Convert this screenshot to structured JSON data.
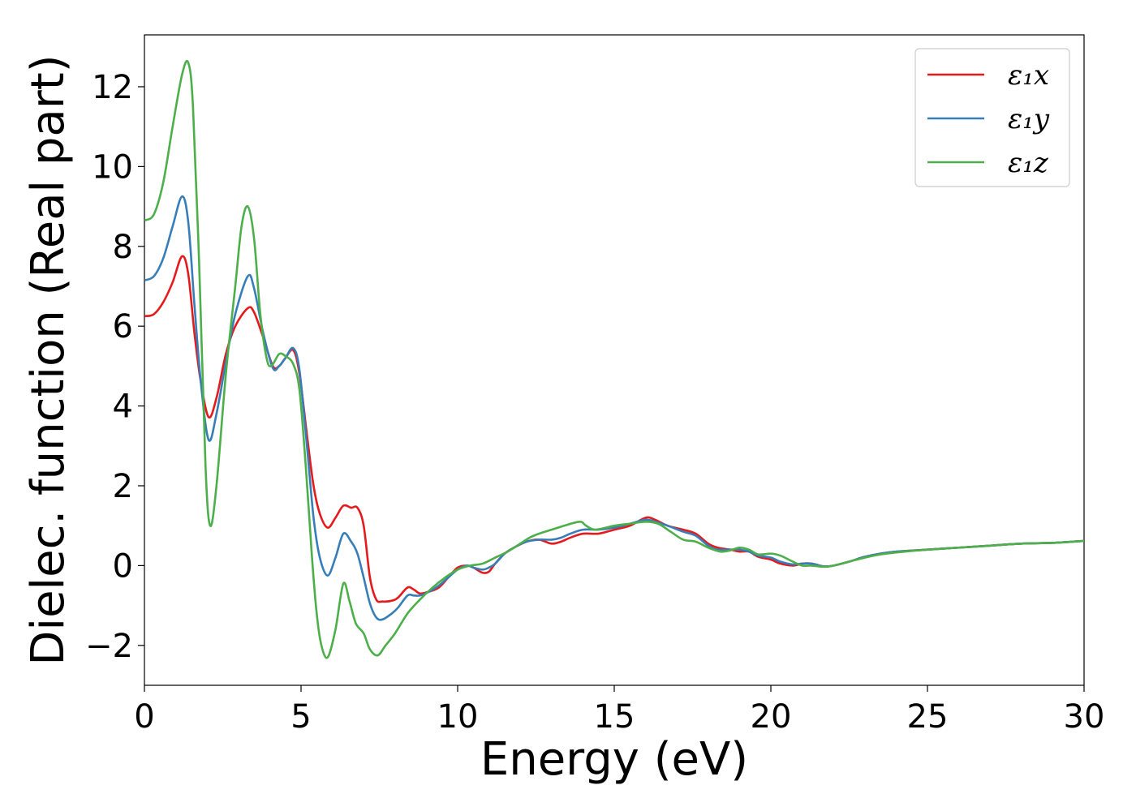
{
  "chart_data": {
    "type": "line",
    "xlabel": "Energy (eV)",
    "ylabel": "Dielec. function (Real part)",
    "xlim": [
      0,
      30
    ],
    "ylim": [
      -3,
      13.3
    ],
    "xticks": [
      0,
      5,
      10,
      15,
      20,
      25,
      30
    ],
    "yticks": [
      -2,
      0,
      2,
      4,
      6,
      8,
      10,
      12
    ],
    "ytick_labels": [
      "−2",
      "0",
      "2",
      "4",
      "6",
      "8",
      "10",
      "12"
    ],
    "grid": false,
    "legend_position": "top-right",
    "series": [
      {
        "name": "ε₁x",
        "color": "#e41a1c",
        "points": [
          [
            0,
            6.25
          ],
          [
            0.3,
            6.3
          ],
          [
            0.6,
            6.6
          ],
          [
            0.9,
            7.1
          ],
          [
            1.2,
            7.75
          ],
          [
            1.4,
            7.3
          ],
          [
            1.6,
            5.8
          ],
          [
            1.8,
            4.6
          ],
          [
            2.05,
            3.72
          ],
          [
            2.3,
            4.2
          ],
          [
            2.6,
            5.3
          ],
          [
            2.9,
            6.0
          ],
          [
            3.3,
            6.45
          ],
          [
            3.5,
            6.35
          ],
          [
            3.8,
            5.7
          ],
          [
            4.1,
            5.0
          ],
          [
            4.3,
            5.0
          ],
          [
            4.5,
            5.2
          ],
          [
            4.75,
            5.4
          ],
          [
            4.95,
            4.8
          ],
          [
            5.2,
            3.2
          ],
          [
            5.4,
            2.0
          ],
          [
            5.6,
            1.3
          ],
          [
            5.85,
            0.95
          ],
          [
            6.1,
            1.2
          ],
          [
            6.35,
            1.5
          ],
          [
            6.6,
            1.45
          ],
          [
            6.8,
            1.45
          ],
          [
            7.0,
            1.0
          ],
          [
            7.2,
            -0.3
          ],
          [
            7.4,
            -0.85
          ],
          [
            7.6,
            -0.9
          ],
          [
            7.9,
            -0.88
          ],
          [
            8.1,
            -0.8
          ],
          [
            8.4,
            -0.55
          ],
          [
            8.6,
            -0.6
          ],
          [
            8.8,
            -0.7
          ],
          [
            9.1,
            -0.65
          ],
          [
            9.4,
            -0.55
          ],
          [
            9.7,
            -0.3
          ],
          [
            10.0,
            -0.05
          ],
          [
            10.3,
            0.0
          ],
          [
            10.5,
            -0.05
          ],
          [
            10.8,
            -0.18
          ],
          [
            11.0,
            -0.15
          ],
          [
            11.2,
            0.05
          ],
          [
            11.5,
            0.3
          ],
          [
            11.8,
            0.45
          ],
          [
            12.2,
            0.6
          ],
          [
            12.6,
            0.65
          ],
          [
            13.0,
            0.55
          ],
          [
            13.3,
            0.6
          ],
          [
            13.6,
            0.7
          ],
          [
            14.0,
            0.8
          ],
          [
            14.5,
            0.8
          ],
          [
            15.0,
            0.9
          ],
          [
            15.5,
            1.0
          ],
          [
            16.0,
            1.2
          ],
          [
            16.3,
            1.15
          ],
          [
            16.7,
            1.0
          ],
          [
            17.2,
            0.9
          ],
          [
            17.6,
            0.8
          ],
          [
            18.0,
            0.55
          ],
          [
            18.3,
            0.45
          ],
          [
            18.7,
            0.4
          ],
          [
            19.0,
            0.35
          ],
          [
            19.3,
            0.35
          ],
          [
            19.6,
            0.22
          ],
          [
            20.0,
            0.15
          ],
          [
            20.3,
            0.05
          ],
          [
            20.7,
            0.0
          ],
          [
            21.0,
            0.05
          ],
          [
            21.3,
            0.05
          ],
          [
            21.7,
            -0.02
          ],
          [
            22.0,
            0.0
          ],
          [
            22.5,
            0.1
          ],
          [
            23.0,
            0.22
          ],
          [
            23.5,
            0.3
          ],
          [
            24.0,
            0.35
          ],
          [
            25.0,
            0.4
          ],
          [
            26.0,
            0.45
          ],
          [
            27.0,
            0.5
          ],
          [
            28.0,
            0.55
          ],
          [
            29.0,
            0.57
          ],
          [
            30.0,
            0.62
          ]
        ]
      },
      {
        "name": "ε₁y",
        "color": "#377eb8",
        "points": [
          [
            0,
            7.15
          ],
          [
            0.3,
            7.25
          ],
          [
            0.6,
            7.7
          ],
          [
            0.9,
            8.5
          ],
          [
            1.2,
            9.25
          ],
          [
            1.4,
            8.6
          ],
          [
            1.6,
            6.5
          ],
          [
            1.8,
            4.6
          ],
          [
            2.05,
            3.15
          ],
          [
            2.3,
            3.8
          ],
          [
            2.6,
            5.1
          ],
          [
            2.9,
            6.3
          ],
          [
            3.3,
            7.25
          ],
          [
            3.5,
            6.95
          ],
          [
            3.8,
            5.8
          ],
          [
            4.1,
            4.95
          ],
          [
            4.3,
            5.0
          ],
          [
            4.5,
            5.2
          ],
          [
            4.75,
            5.45
          ],
          [
            4.95,
            4.9
          ],
          [
            5.2,
            2.9
          ],
          [
            5.4,
            1.2
          ],
          [
            5.6,
            0.2
          ],
          [
            5.85,
            -0.25
          ],
          [
            6.1,
            0.2
          ],
          [
            6.35,
            0.8
          ],
          [
            6.6,
            0.6
          ],
          [
            6.8,
            0.3
          ],
          [
            7.0,
            -0.3
          ],
          [
            7.2,
            -0.95
          ],
          [
            7.4,
            -1.3
          ],
          [
            7.6,
            -1.35
          ],
          [
            7.9,
            -1.2
          ],
          [
            8.1,
            -1.05
          ],
          [
            8.4,
            -0.75
          ],
          [
            8.6,
            -0.75
          ],
          [
            8.8,
            -0.75
          ],
          [
            9.1,
            -0.65
          ],
          [
            9.4,
            -0.5
          ],
          [
            9.7,
            -0.3
          ],
          [
            10.0,
            -0.1
          ],
          [
            10.3,
            0.0
          ],
          [
            10.5,
            -0.05
          ],
          [
            10.8,
            -0.1
          ],
          [
            11.0,
            -0.05
          ],
          [
            11.2,
            0.05
          ],
          [
            11.5,
            0.3
          ],
          [
            11.8,
            0.45
          ],
          [
            12.2,
            0.6
          ],
          [
            12.6,
            0.65
          ],
          [
            13.0,
            0.65
          ],
          [
            13.3,
            0.7
          ],
          [
            13.6,
            0.8
          ],
          [
            14.0,
            0.9
          ],
          [
            14.5,
            0.9
          ],
          [
            15.0,
            0.95
          ],
          [
            15.5,
            1.05
          ],
          [
            16.0,
            1.15
          ],
          [
            16.3,
            1.1
          ],
          [
            16.7,
            1.0
          ],
          [
            17.2,
            0.85
          ],
          [
            17.6,
            0.75
          ],
          [
            18.0,
            0.5
          ],
          [
            18.3,
            0.4
          ],
          [
            18.7,
            0.4
          ],
          [
            19.0,
            0.4
          ],
          [
            19.3,
            0.35
          ],
          [
            19.6,
            0.25
          ],
          [
            20.0,
            0.2
          ],
          [
            20.3,
            0.1
          ],
          [
            20.7,
            0.03
          ],
          [
            21.0,
            0.05
          ],
          [
            21.3,
            0.05
          ],
          [
            21.7,
            -0.02
          ],
          [
            22.0,
            0.0
          ],
          [
            22.5,
            0.1
          ],
          [
            23.0,
            0.22
          ],
          [
            23.5,
            0.3
          ],
          [
            24.0,
            0.35
          ],
          [
            25.0,
            0.4
          ],
          [
            26.0,
            0.45
          ],
          [
            27.0,
            0.5
          ],
          [
            28.0,
            0.55
          ],
          [
            29.0,
            0.57
          ],
          [
            30.0,
            0.62
          ]
        ]
      },
      {
        "name": "ε₁z",
        "color": "#4daf4a",
        "points": [
          [
            0,
            8.65
          ],
          [
            0.3,
            8.8
          ],
          [
            0.6,
            9.6
          ],
          [
            0.9,
            11.0
          ],
          [
            1.2,
            12.3
          ],
          [
            1.4,
            12.6
          ],
          [
            1.55,
            11.5
          ],
          [
            1.75,
            7.5
          ],
          [
            1.95,
            2.5
          ],
          [
            2.1,
            1.0
          ],
          [
            2.3,
            2.0
          ],
          [
            2.6,
            4.8
          ],
          [
            2.9,
            7.0
          ],
          [
            3.1,
            8.5
          ],
          [
            3.3,
            9.0
          ],
          [
            3.5,
            8.2
          ],
          [
            3.7,
            6.3
          ],
          [
            3.9,
            5.2
          ],
          [
            4.05,
            5.0
          ],
          [
            4.3,
            5.3
          ],
          [
            4.5,
            5.25
          ],
          [
            4.75,
            5.05
          ],
          [
            4.95,
            4.4
          ],
          [
            5.15,
            2.5
          ],
          [
            5.35,
            0.2
          ],
          [
            5.5,
            -1.2
          ],
          [
            5.65,
            -2.0
          ],
          [
            5.85,
            -2.3
          ],
          [
            6.1,
            -1.6
          ],
          [
            6.35,
            -0.45
          ],
          [
            6.55,
            -0.9
          ],
          [
            6.75,
            -1.45
          ],
          [
            7.0,
            -1.7
          ],
          [
            7.2,
            -2.1
          ],
          [
            7.45,
            -2.25
          ],
          [
            7.7,
            -2.0
          ],
          [
            8.0,
            -1.7
          ],
          [
            8.4,
            -1.2
          ],
          [
            8.8,
            -0.85
          ],
          [
            9.2,
            -0.55
          ],
          [
            9.6,
            -0.3
          ],
          [
            10.0,
            -0.1
          ],
          [
            10.4,
            0.0
          ],
          [
            10.8,
            0.05
          ],
          [
            11.2,
            0.2
          ],
          [
            11.6,
            0.35
          ],
          [
            12.0,
            0.55
          ],
          [
            12.3,
            0.7
          ],
          [
            12.6,
            0.8
          ],
          [
            13.0,
            0.9
          ],
          [
            13.4,
            1.0
          ],
          [
            13.9,
            1.1
          ],
          [
            14.1,
            1.0
          ],
          [
            14.4,
            0.9
          ],
          [
            15.0,
            1.0
          ],
          [
            15.5,
            1.05
          ],
          [
            16.0,
            1.1
          ],
          [
            16.4,
            1.05
          ],
          [
            16.8,
            0.85
          ],
          [
            17.2,
            0.65
          ],
          [
            17.6,
            0.6
          ],
          [
            18.0,
            0.45
          ],
          [
            18.4,
            0.35
          ],
          [
            18.7,
            0.38
          ],
          [
            19.0,
            0.45
          ],
          [
            19.3,
            0.4
          ],
          [
            19.6,
            0.28
          ],
          [
            20.0,
            0.3
          ],
          [
            20.3,
            0.25
          ],
          [
            20.7,
            0.1
          ],
          [
            21.0,
            0.0
          ],
          [
            21.3,
            0.0
          ],
          [
            21.7,
            -0.03
          ],
          [
            22.0,
            0.0
          ],
          [
            22.5,
            0.1
          ],
          [
            23.0,
            0.2
          ],
          [
            23.5,
            0.28
          ],
          [
            24.0,
            0.33
          ],
          [
            25.0,
            0.4
          ],
          [
            26.0,
            0.45
          ],
          [
            27.0,
            0.5
          ],
          [
            28.0,
            0.55
          ],
          [
            29.0,
            0.57
          ],
          [
            30.0,
            0.62
          ]
        ]
      }
    ]
  }
}
